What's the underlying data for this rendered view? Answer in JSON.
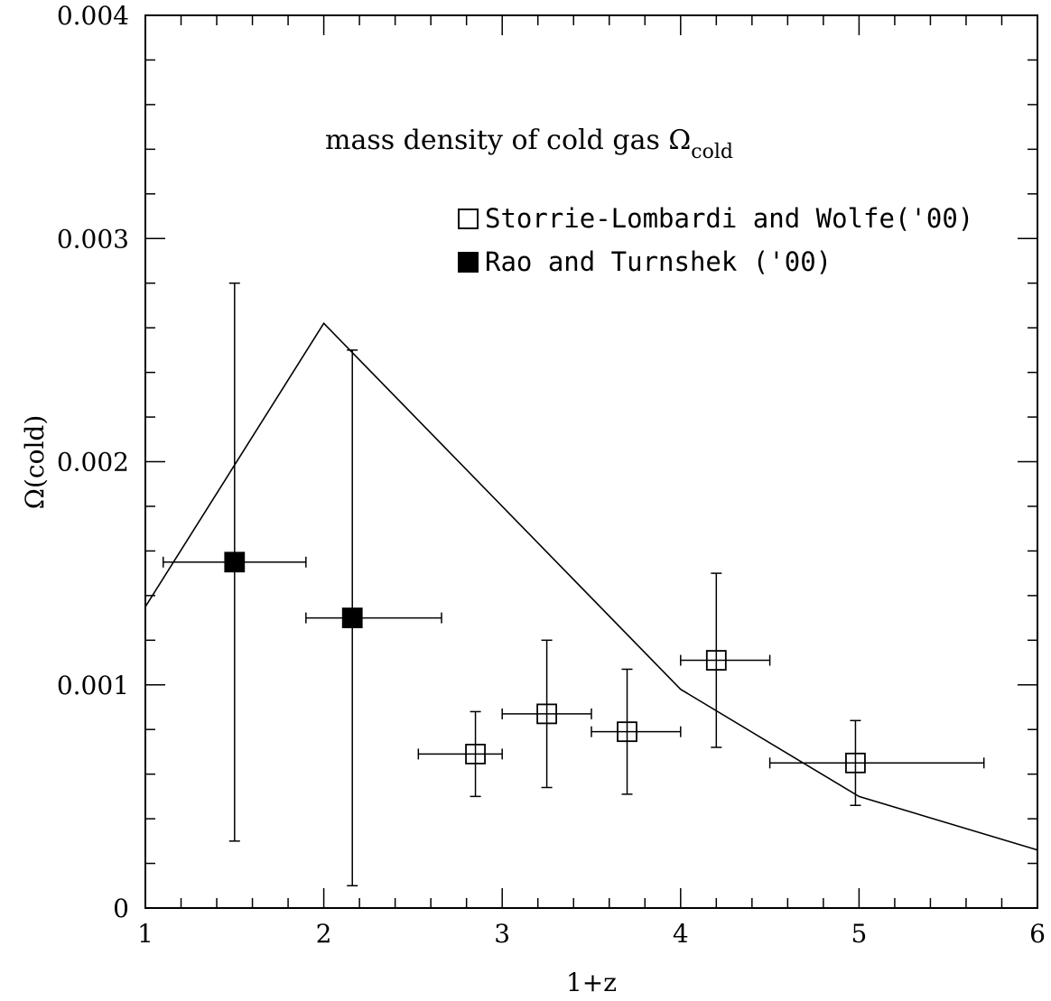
{
  "chart_data": {
    "type": "scatter",
    "title": "mass density of cold gas Ω",
    "title_subscript": "cold",
    "xlabel": "1+z",
    "ylabel": "Ω(cold)",
    "xlim": [
      1,
      6
    ],
    "ylim": [
      0,
      0.004
    ],
    "x_ticks": [
      1,
      2,
      3,
      4,
      5,
      6
    ],
    "x_tick_labels": [
      "1",
      "2",
      "3",
      "4",
      "5",
      "6"
    ],
    "y_ticks": [
      0,
      0.001,
      0.002,
      0.003,
      0.004
    ],
    "y_tick_labels": [
      "0",
      "0.001",
      "0.002",
      "0.003",
      "0.004"
    ],
    "grid": false,
    "legend_position": "top-right",
    "series": [
      {
        "name": "Storrie-Lombardi and Wolfe('00)",
        "marker": "open-square",
        "points": [
          {
            "x": 2.85,
            "y": 0.00069,
            "xerr": [
              2.53,
              3.0
            ],
            "yerr": [
              0.0005,
              0.00088
            ]
          },
          {
            "x": 3.25,
            "y": 0.00087,
            "xerr": [
              3.0,
              3.5
            ],
            "yerr": [
              0.00054,
              0.0012
            ]
          },
          {
            "x": 3.7,
            "y": 0.00079,
            "xerr": [
              3.5,
              4.0
            ],
            "yerr": [
              0.00051,
              0.00107
            ]
          },
          {
            "x": 4.2,
            "y": 0.00111,
            "xerr": [
              4.0,
              4.5
            ],
            "yerr": [
              0.00072,
              0.0015
            ]
          },
          {
            "x": 4.98,
            "y": 0.00065,
            "xerr": [
              4.5,
              5.7
            ],
            "yerr": [
              0.00046,
              0.00084
            ]
          }
        ]
      },
      {
        "name": "Rao and Turnshek ('00)",
        "marker": "filled-square",
        "points": [
          {
            "x": 1.5,
            "y": 0.00155,
            "xerr": [
              1.1,
              1.9
            ],
            "yerr": [
              0.0003,
              0.0028
            ]
          },
          {
            "x": 2.16,
            "y": 0.0013,
            "xerr": [
              1.9,
              2.66
            ],
            "yerr": [
              0.0001,
              0.0025
            ]
          }
        ]
      },
      {
        "type": "line",
        "x": [
          1.0,
          2.0,
          4.0,
          5.0,
          6.0
        ],
        "y": [
          0.00135,
          0.00262,
          0.00098,
          0.0005,
          0.00026
        ]
      }
    ]
  }
}
